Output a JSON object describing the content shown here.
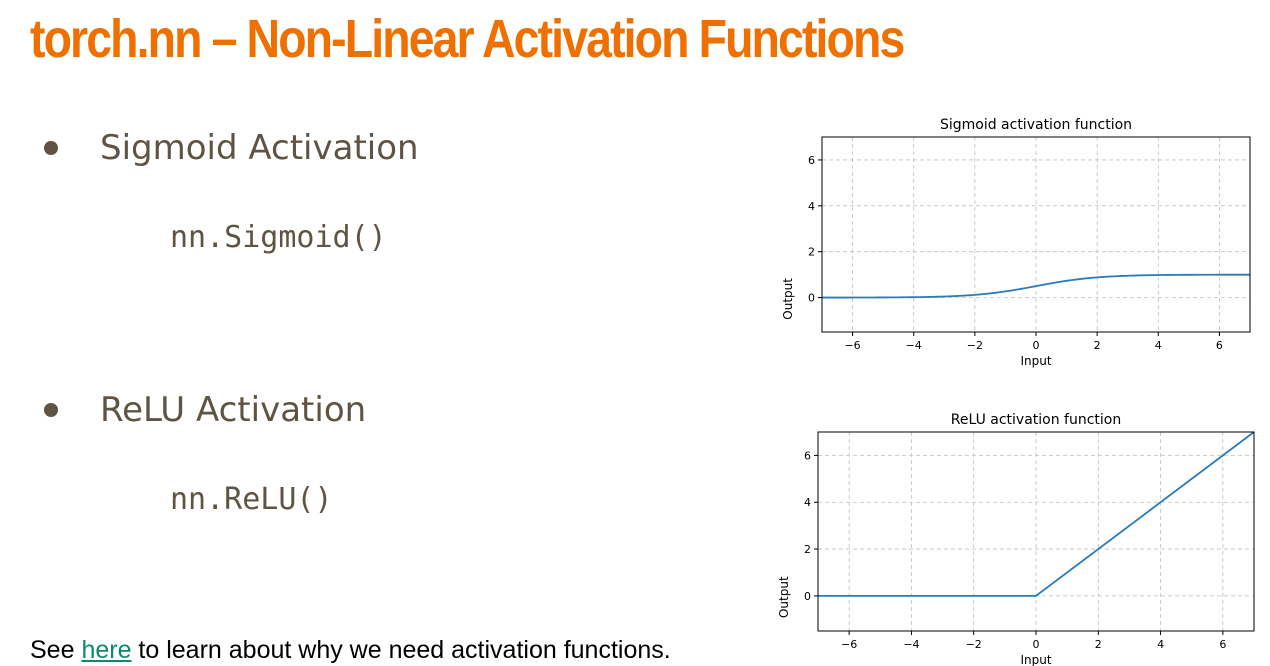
{
  "slide": {
    "title": "torch.nn – Non-Linear Activation Functions",
    "bullets": [
      {
        "label": "Sigmoid Activation",
        "code": "nn.Sigmoid()"
      },
      {
        "label": "ReLU Activation",
        "code": "nn.ReLU()"
      }
    ],
    "footer": {
      "prefix": "See ",
      "link_text": "here",
      "suffix": " to learn about why we need activation functions."
    }
  },
  "colors": {
    "title": "#ee7000",
    "bullet_text": "#5f5443",
    "link": "#0b8a6f",
    "line": "#2b7bb9"
  },
  "chart_data": [
    {
      "type": "line",
      "title": "Sigmoid activation function",
      "xlabel": "Input",
      "ylabel": "Output",
      "xlim": [
        -7,
        7
      ],
      "ylim": [
        -1.5,
        7
      ],
      "xticks": [
        -6,
        -4,
        -2,
        0,
        2,
        4,
        6
      ],
      "xtick_labels": [
        "−6",
        "−4",
        "−2",
        "0",
        "2",
        "4",
        "6"
      ],
      "yticks": [
        0,
        2,
        4,
        6
      ],
      "ytick_labels": [
        "0",
        "2",
        "4",
        "6"
      ],
      "grid": true,
      "function": "sigmoid",
      "series": [
        {
          "x": [
            -7,
            -6,
            -5,
            -4,
            -3,
            -2,
            -1,
            0,
            1,
            2,
            3,
            4,
            5,
            6,
            7
          ],
          "y": [
            0.001,
            0.002,
            0.007,
            0.018,
            0.047,
            0.119,
            0.269,
            0.5,
            0.731,
            0.881,
            0.953,
            0.982,
            0.993,
            0.998,
            0.999
          ]
        }
      ]
    },
    {
      "type": "line",
      "title": "ReLU activation function",
      "xlabel": "Input",
      "ylabel": "Output",
      "xlim": [
        -7,
        7
      ],
      "ylim": [
        -1.5,
        7
      ],
      "xticks": [
        -6,
        -4,
        -2,
        0,
        2,
        4,
        6
      ],
      "xtick_labels": [
        "−6",
        "−4",
        "−2",
        "0",
        "2",
        "4",
        "6"
      ],
      "yticks": [
        0,
        2,
        4,
        6
      ],
      "ytick_labels": [
        "0",
        "2",
        "4",
        "6"
      ],
      "grid": true,
      "function": "relu",
      "series": [
        {
          "x": [
            -7,
            0,
            7
          ],
          "y": [
            0,
            0,
            7
          ]
        }
      ]
    }
  ]
}
